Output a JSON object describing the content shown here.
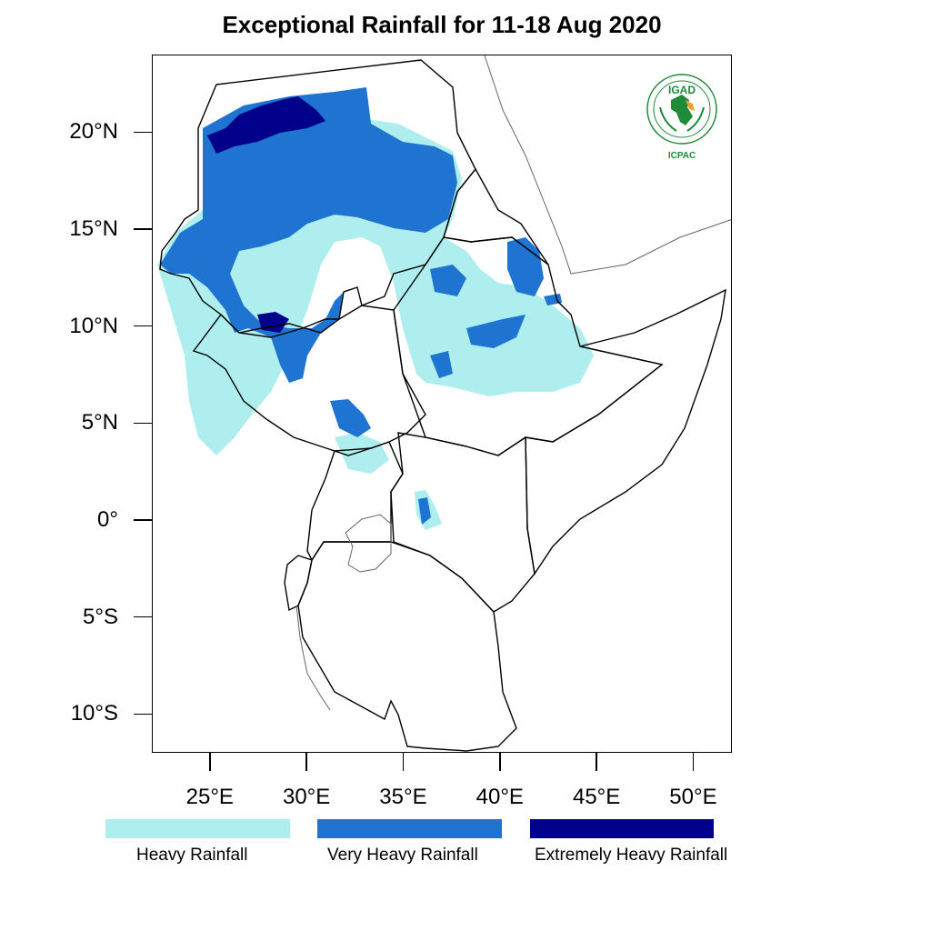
{
  "title": "Exceptional Rainfall for 11-18 Aug 2020",
  "map": {
    "lon_range": [
      22,
      52
    ],
    "lat_range": [
      -12,
      24
    ],
    "lat_ticks": [
      {
        "value": 20,
        "label": "20°N"
      },
      {
        "value": 15,
        "label": "15°N"
      },
      {
        "value": 10,
        "label": "10°N"
      },
      {
        "value": 5,
        "label": "5°N"
      },
      {
        "value": 0,
        "label": "0°"
      },
      {
        "value": -5,
        "label": "5°S"
      },
      {
        "value": -10,
        "label": "10°S"
      }
    ],
    "lon_ticks": [
      {
        "value": 25,
        "label": "25°E"
      },
      {
        "value": 30,
        "label": "30°E"
      },
      {
        "value": 35,
        "label": "35°E"
      },
      {
        "value": 40,
        "label": "40°E"
      },
      {
        "value": 45,
        "label": "45°E"
      },
      {
        "value": 50,
        "label": "50°E"
      }
    ]
  },
  "legend": [
    {
      "label": "Heavy Rainfall",
      "color": "#aeeeee"
    },
    {
      "label": "Very Heavy Rainfall",
      "color": "#1e74d0"
    },
    {
      "label": "Extremely Heavy Rainfall",
      "color": "#00008b"
    }
  ],
  "logo": {
    "top_text": "IGAD",
    "bottom_text": "ICPAC",
    "color": "#1e8a3a",
    "accent": "#e8a33a"
  }
}
